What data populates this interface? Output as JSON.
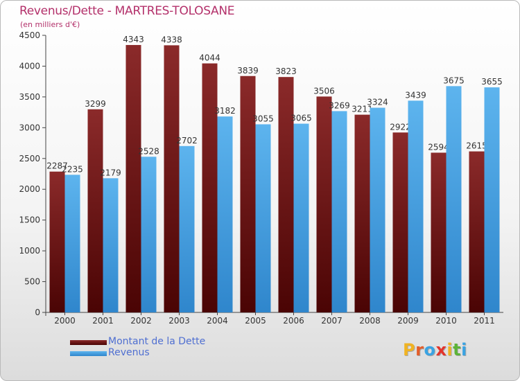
{
  "chart_data": {
    "type": "bar",
    "title": "Revenus/Dette - MARTRES-TOLOSANE",
    "subtitle": "(en milliers d'€)",
    "categories": [
      "2000",
      "2001",
      "2002",
      "2003",
      "2004",
      "2005",
      "2006",
      "2007",
      "2008",
      "2009",
      "2010",
      "2011"
    ],
    "series": [
      {
        "name": "Montant de la Dette",
        "color": "#7a1e1e",
        "values": [
          2287,
          3299,
          4343,
          4338,
          4044,
          3839,
          3823,
          3506,
          3211,
          2922,
          2594,
          2615
        ]
      },
      {
        "name": "Revenus",
        "color": "#4aa3e3",
        "values": [
          2235,
          2179,
          2528,
          2702,
          3182,
          3055,
          3065,
          3269,
          3324,
          3439,
          3675,
          3655
        ]
      }
    ],
    "data_labels": [
      [
        "2287",
        "3299",
        "4343",
        "4338",
        "4044",
        "3839",
        "3823",
        "3506",
        "3211",
        "2922",
        "2594",
        "2615"
      ],
      [
        "2235",
        "2179",
        "2528",
        "2702",
        "3182",
        "3055",
        "3065",
        "3269",
        "3324",
        "3439",
        "3675",
        "3655"
      ]
    ],
    "ylim": [
      0,
      4500
    ],
    "yticks": [
      "0",
      "500",
      "1000",
      "1500",
      "2000",
      "2500",
      "3000",
      "3500",
      "4000",
      "4500"
    ],
    "grid": false,
    "legend_position": "bottom-left"
  },
  "branding": {
    "logo_letters": [
      "P",
      "r",
      "o",
      "x",
      "i",
      "t",
      "i"
    ],
    "logo_colors": [
      "#f0b323",
      "#e35e2b",
      "#3aa3e2",
      "#e3342b",
      "#f0b323",
      "#5cb338",
      "#3aa3e2"
    ]
  }
}
